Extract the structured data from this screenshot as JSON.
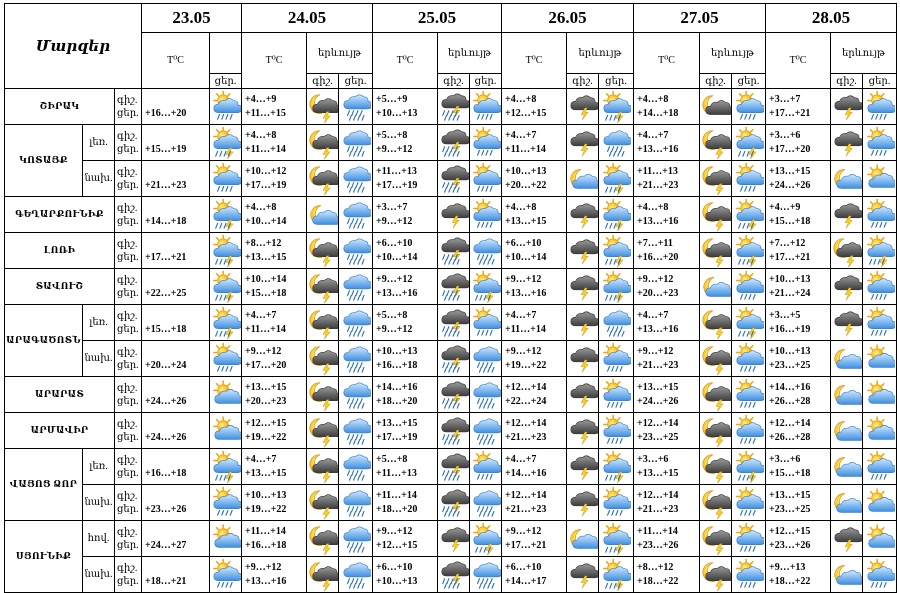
{
  "header": {
    "region_title": "Մարզեր",
    "temp_label": "T⁰C",
    "phenomenon_label": "երևույթ",
    "day_label": "ցեր.",
    "night_label": "գիշ."
  },
  "dates": [
    "23.05",
    "24.05",
    "25.05",
    "26.05",
    "27.05",
    "28.05"
  ],
  "rows": [
    {
      "region": "ՇԻՐԱԿ",
      "sub": "",
      "tl": [
        "գիշ.",
        "ցեր."
      ],
      "t23": "+16…+20",
      "i23": "sun-cloud-rain",
      "d": [
        [
          "+4…+9",
          "+11…+15",
          "moon-storm",
          "cloud-rain"
        ],
        [
          "+5…+9",
          "+10…+13",
          "storm-rain",
          "sun-cloud-rain"
        ],
        [
          "+4…+8",
          "+12…+15",
          "storm",
          "sun-storm"
        ],
        [
          "+4…+8",
          "+14…+18",
          "moon-cloud",
          "sun-cloud-rain"
        ],
        [
          "+3…+7",
          "+17…+21",
          "storm",
          "sun-cloud-rain"
        ]
      ]
    },
    {
      "region": "ԿՈՏԱՅՔ",
      "sub": "լեռ.",
      "tl": [
        "գիշ.",
        "ցեր."
      ],
      "t23": "+15…+19",
      "i23": "sun-storm",
      "d": [
        [
          "+4…+8",
          "+11…+14",
          "moon-storm",
          "cloud-rain"
        ],
        [
          "+5…+8",
          "+9…+12",
          "storm-rain",
          "sun-cloud-rain"
        ],
        [
          "+4…+7",
          "+11…+14",
          "storm",
          "cloud-rain"
        ],
        [
          "+4…+7",
          "+13…+16",
          "moon-storm",
          "sun-storm"
        ],
        [
          "+3…+6",
          "+17…+20",
          "storm",
          "sun-cloud-rain"
        ]
      ]
    },
    {
      "region": "",
      "sub": "նախ.",
      "tl": [
        "գիշ.",
        "ցեր."
      ],
      "t23": "+21…+23",
      "i23": "sun-cloud-rain",
      "d": [
        [
          "+10…+12",
          "+17…+19",
          "moon-storm",
          "cloud-rain"
        ],
        [
          "+11…+13",
          "+17…+19",
          "storm-rain",
          "sun-cloud-rain"
        ],
        [
          "+10…+13",
          "+20…+22",
          "moon",
          "sun-storm"
        ],
        [
          "+11…+13",
          "+21…+23",
          "moon-storm",
          "sun-cloud-rain"
        ],
        [
          "+13…+15",
          "+24…+26",
          "moon",
          "sun-cloud"
        ]
      ]
    },
    {
      "region": "ԳԵՂԱՐՔՈՒՆԻՔ",
      "sub": "",
      "tl": [
        "գիշ.",
        "ցեր."
      ],
      "t23": "+14…+18",
      "i23": "sun-storm",
      "d": [
        [
          "+4…+8",
          "+10…+14",
          "moon",
          "cloud-rain"
        ],
        [
          "+3…+7",
          "+9…+12",
          "storm",
          "sun-cloud-rain"
        ],
        [
          "+4…+8",
          "+13…+15",
          "storm",
          "sun-storm"
        ],
        [
          "+4…+8",
          "+13…+16",
          "moon-storm",
          "sun-storm"
        ],
        [
          "+4…+9",
          "+15…+18",
          "storm",
          "sun-cloud-rain"
        ]
      ]
    },
    {
      "region": "ԼՈՌԻ",
      "sub": "",
      "tl": [
        "գիշ.",
        "ցեր."
      ],
      "t23": "+17…+21",
      "i23": "sun-storm",
      "d": [
        [
          "+8…+12",
          "+13…+15",
          "moon-storm",
          "cloud-rain"
        ],
        [
          "+6…+10",
          "+10…+14",
          "storm-rain",
          "cloud-rain"
        ],
        [
          "+6…+10",
          "+10…+14",
          "storm",
          "sun-storm"
        ],
        [
          "+7…+11",
          "+16…+20",
          "moon-storm",
          "sun-storm"
        ],
        [
          "+7…+12",
          "+17…+21",
          "moon-storm",
          "sun-storm"
        ]
      ]
    },
    {
      "region": "ՏԱՎՈՒՇ",
      "sub": "",
      "tl": [
        "գիշ.",
        "ցեր."
      ],
      "t23": "+22…+25",
      "i23": "sun-storm",
      "d": [
        [
          "+10…+14",
          "+15…+18",
          "moon-storm",
          "cloud-rain"
        ],
        [
          "+9…+12",
          "+13…+16",
          "storm-rain",
          "sun-storm"
        ],
        [
          "+9…+12",
          "+13…+16",
          "storm",
          "sun-storm"
        ],
        [
          "+9…+12",
          "+20…+23",
          "moon",
          "sun-cloud-rain"
        ],
        [
          "+10…+13",
          "+21…+24",
          "storm",
          "sun-cloud-rain"
        ]
      ]
    },
    {
      "region": "ԱՐԱԳԱԾՈՏՆ",
      "sub": "լեռ.",
      "tl": [
        "գիշ.",
        "ցեր."
      ],
      "t23": "+15…+18",
      "i23": "sun-storm",
      "d": [
        [
          "+4…+7",
          "+11…+14",
          "moon-storm",
          "cloud-rain"
        ],
        [
          "+5…+8",
          "+9…+12",
          "storm-rain",
          "sun-cloud-rain"
        ],
        [
          "+4…+7",
          "+11…+14",
          "storm",
          "cloud-rain"
        ],
        [
          "+4…+7",
          "+13…+16",
          "moon-storm",
          "sun-storm"
        ],
        [
          "+3…+5",
          "+16…+19",
          "storm",
          "sun-cloud-rain"
        ]
      ]
    },
    {
      "region": "",
      "sub": "նախ.",
      "tl": [
        "գիշ.",
        "ցեր."
      ],
      "t23": "+20…+24",
      "i23": "sun-cloud-rain",
      "d": [
        [
          "+9…+12",
          "+17…+20",
          "moon-storm",
          "cloud-rain"
        ],
        [
          "+10…+13",
          "+16…+18",
          "storm-rain",
          "cloud-rain"
        ],
        [
          "+9…+12",
          "+19…+22",
          "storm",
          "sun-cloud-rain"
        ],
        [
          "+9…+12",
          "+21…+23",
          "moon-storm",
          "sun-cloud-rain"
        ],
        [
          "+10…+13",
          "+23…+25",
          "moon",
          "sun-cloud"
        ]
      ]
    },
    {
      "region": "ԱՐԱՐԱՏ",
      "sub": "",
      "tl": [
        "գիշ.",
        "ցեր."
      ],
      "t23": "+24…+26",
      "i23": "sun-cloud",
      "d": [
        [
          "+13…+15",
          "+20…+23",
          "moon-storm",
          "cloud-rain"
        ],
        [
          "+14…+16",
          "+18…+20",
          "storm-rain",
          "cloud-rain"
        ],
        [
          "+12…+14",
          "+22…+24",
          "storm",
          "sun-cloud-rain"
        ],
        [
          "+13…+15",
          "+24…+26",
          "moon-storm",
          "sun-cloud-rain"
        ],
        [
          "+14…+16",
          "+26…+28",
          "moon",
          "sun-cloud"
        ]
      ]
    },
    {
      "region": "ԱՐՄԱՎԻՐ",
      "sub": "",
      "tl": [
        "գիշ.",
        "ցեր."
      ],
      "t23": "+24…+26",
      "i23": "sun-cloud",
      "d": [
        [
          "+12…+15",
          "+19…+22",
          "moon-storm",
          "cloud-rain"
        ],
        [
          "+13…+15",
          "+17…+19",
          "storm-rain",
          "cloud-rain"
        ],
        [
          "+12…+14",
          "+21…+23",
          "storm",
          "sun-cloud-rain"
        ],
        [
          "+12…+14",
          "+23…+25",
          "moon-storm",
          "sun-cloud-rain"
        ],
        [
          "+12…+14",
          "+26…+28",
          "moon",
          "sun-cloud"
        ]
      ]
    },
    {
      "region": "ՎԱՅՈՑ ՁՈՐ",
      "sub": "լեռ.",
      "tl": [
        "գիշ.",
        "ցեր."
      ],
      "t23": "+16…+18",
      "i23": "sun-storm",
      "d": [
        [
          "+4…+7",
          "+13…+15",
          "moon-storm",
          "cloud-rain"
        ],
        [
          "+5…+8",
          "+11…+13",
          "storm-rain",
          "sun-cloud-rain"
        ],
        [
          "+4…+7",
          "+14…+16",
          "storm",
          "sun-storm"
        ],
        [
          "+3…+6",
          "+13…+15",
          "moon-storm",
          "sun-storm"
        ],
        [
          "+3…+6",
          "+15…+18",
          "moon",
          "sun-cloud-rain"
        ]
      ]
    },
    {
      "region": "",
      "sub": "նախ.",
      "tl": [
        "գիշ.",
        "ցեր."
      ],
      "t23": "+23…+26",
      "i23": "sun-cloud-rain",
      "d": [
        [
          "+10…+13",
          "+19…+22",
          "moon-storm",
          "cloud-rain"
        ],
        [
          "+11…+14",
          "+18…+20",
          "storm-rain",
          "cloud-rain"
        ],
        [
          "+12…+14",
          "+21…+23",
          "storm",
          "sun-cloud-rain"
        ],
        [
          "+12…+14",
          "+21…+23",
          "moon-storm",
          "sun-cloud-rain"
        ],
        [
          "+13…+15",
          "+23…+25",
          "moon",
          "sun-cloud"
        ]
      ]
    },
    {
      "region": "ՍՅՈՒՆԻՔ",
      "sub": "հով.",
      "tl": [
        "գիշ.",
        "ցեր."
      ],
      "t23": "+24…+27",
      "i23": "sun-cloud",
      "d": [
        [
          "+11…+14",
          "+16…+18",
          "moon-storm",
          "cloud-rain"
        ],
        [
          "+9…+12",
          "+12…+15",
          "storm",
          "sun-storm"
        ],
        [
          "+9…+12",
          "+17…+21",
          "moon",
          "sun-storm"
        ],
        [
          "+11…+14",
          "+23…+26",
          "moon-storm",
          "sun-cloud-rain"
        ],
        [
          "+12…+15",
          "+23…+26",
          "storm",
          "sun-cloud"
        ]
      ]
    },
    {
      "region": "",
      "sub": "նախ.",
      "tl": [
        "գիշ.",
        "ցեր."
      ],
      "t23": "+18…+21",
      "i23": "sun-cloud-rain",
      "d": [
        [
          "+9…+12",
          "+13…+16",
          "moon-storm",
          "cloud-rain"
        ],
        [
          "+6…+10",
          "+10…+13",
          "storm-rain",
          "cloud-rain"
        ],
        [
          "+6…+10",
          "+14…+17",
          "storm",
          "sun-storm"
        ],
        [
          "+8…+12",
          "+18…+22",
          "moon-storm",
          "sun-cloud-rain"
        ],
        [
          "+9…+13",
          "+18…+22",
          "moon",
          "sun-cloud-rain"
        ]
      ]
    }
  ]
}
